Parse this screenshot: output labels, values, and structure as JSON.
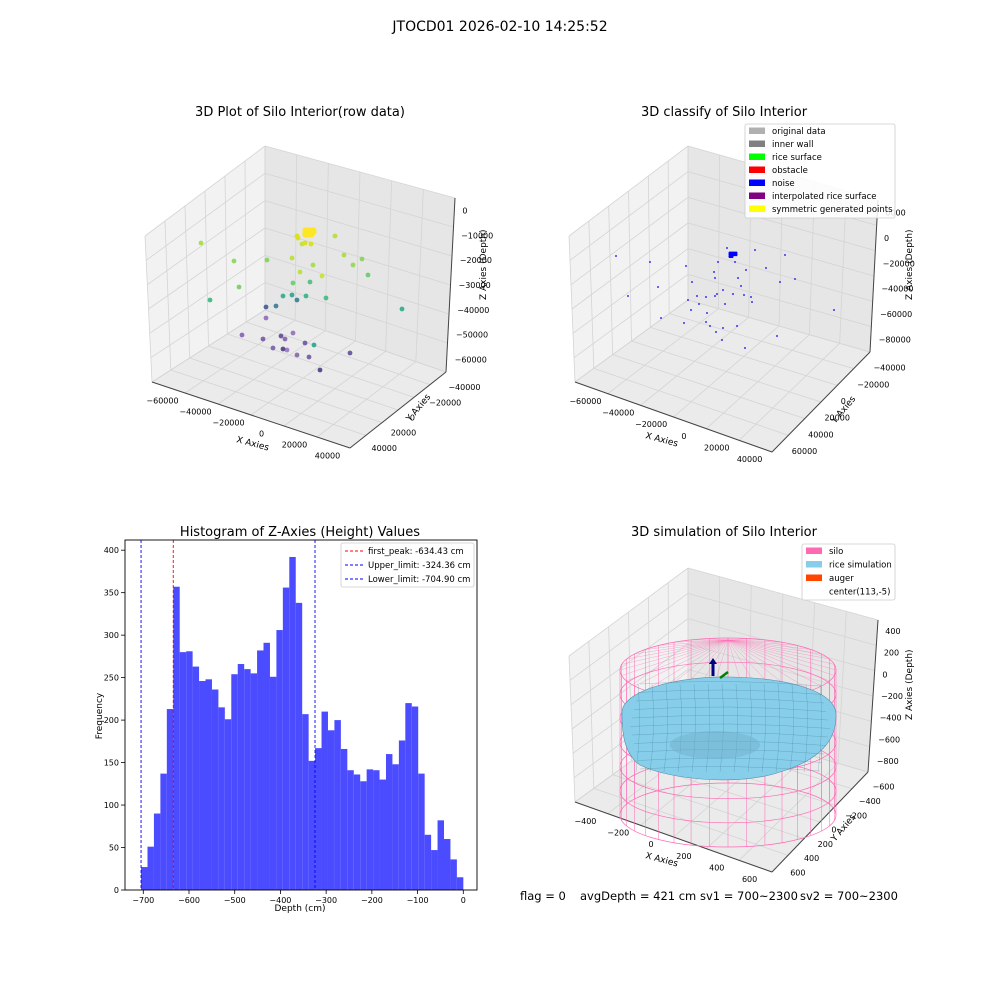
{
  "suptitle": "JTOCD01 2026-02-10 14:25:52",
  "footer": {
    "flag": "flag = 0",
    "avg_depth": "avgDepth = 421 cm",
    "sv1": "sv1 = 700~2300",
    "sv2": "sv2 = 700~2300"
  },
  "colors": {
    "histogram_bar": "#4b4bff",
    "first_peak": "#ff0000",
    "limits": "#0000ff",
    "silo": "#ff69b4",
    "rice_simulation": "#87ceeb",
    "auger": "#ff4500",
    "noise": "#0000ff"
  },
  "chart_data": [
    {
      "type": "scatter",
      "title": "3D Plot of Silo Interior(row data)",
      "xlabel": "X Axies",
      "ylabel": "Y Axies",
      "zlabel": "Z Axies (Depth)",
      "x_ticks": [
        "−60000",
        "−40000",
        "−20000",
        "0",
        "20000",
        "40000"
      ],
      "y_ticks": [
        "40000",
        "20000",
        "0",
        "−20000",
        "−40000"
      ],
      "z_ticks": [
        "0",
        "−10000",
        "−20000",
        "−30000",
        "−40000",
        "−50000",
        "−60000"
      ],
      "colormap": "viridis by depth"
    },
    {
      "type": "scatter",
      "title": "3D classify of Silo Interior",
      "xlabel": "X Axies",
      "ylabel": "Y Axies",
      "zlabel": "Z Axies (Depth)",
      "x_ticks": [
        "−60000",
        "−40000",
        "−20000",
        "0",
        "20000",
        "40000"
      ],
      "y_ticks": [
        "60000",
        "40000",
        "20000",
        "0",
        "−20000",
        "−40000"
      ],
      "z_ticks": [
        "0000",
        "0",
        "−20000",
        "−40000",
        "−60000",
        "−80000"
      ],
      "legend": [
        {
          "label": "original data",
          "color": "#b0b0b0"
        },
        {
          "label": "inner wall",
          "color": "#808080"
        },
        {
          "label": "rice surface",
          "color": "#00ff00"
        },
        {
          "label": "obstacle",
          "color": "#ff0000"
        },
        {
          "label": "noise",
          "color": "#0000ff"
        },
        {
          "label": "interpolated rice surface",
          "color": "#800080"
        },
        {
          "label": "symmetric generated points",
          "color": "#ffff00"
        }
      ],
      "legend_position": "top-right"
    },
    {
      "type": "bar",
      "title": "Histogram of Z-Axies (Height) Values",
      "xlabel": "Depth (cm)",
      "ylabel": "Frequency",
      "xlim": [
        -740,
        30
      ],
      "ylim": [
        0,
        412
      ],
      "x_ticks": [
        -700,
        -600,
        -500,
        -400,
        -300,
        -200,
        -100,
        0
      ],
      "x_tick_labels": [
        "−700",
        "−600",
        "−500",
        "−400",
        "−300",
        "−200",
        "−100",
        "0"
      ],
      "y_ticks": [
        0,
        50,
        100,
        150,
        200,
        250,
        300,
        350,
        400
      ],
      "bin_start": -704.9,
      "bin_width": 14.1,
      "values": [
        27,
        51,
        90,
        137,
        213,
        357,
        280,
        281,
        263,
        246,
        248,
        236,
        215,
        201,
        254,
        266,
        260,
        255,
        282,
        291,
        251,
        306,
        356,
        392,
        338,
        207,
        152,
        167,
        210,
        188,
        200,
        166,
        141,
        136,
        128,
        142,
        141,
        130,
        160,
        148,
        176,
        220,
        216,
        137,
        65,
        47,
        82,
        60,
        36,
        15
      ],
      "vlines": [
        {
          "name": "first_peak: -634.43 cm",
          "x": -634.43,
          "color": "#ff0000"
        },
        {
          "name": "Upper_limit: -324.36 cm",
          "x": -324.36,
          "color": "#0000ff"
        },
        {
          "name": "Lower_limit: -704.90 cm",
          "x": -704.9,
          "color": "#0000ff"
        }
      ],
      "legend_position": "top-right"
    },
    {
      "type": "scatter",
      "title": "3D simulation of Silo Interior",
      "xlabel": "X Axies",
      "ylabel": "Y Axies",
      "zlabel": "Z Axies (Depth)",
      "x_ticks": [
        "−400",
        "−200",
        "0",
        "200",
        "400",
        "600"
      ],
      "y_ticks": [
        "600",
        "400",
        "200",
        "0",
        "−200",
        "−400",
        "−600"
      ],
      "z_ticks": [
        "400",
        "200",
        "0",
        "−200",
        "−400",
        "−600",
        "−800"
      ],
      "legend": [
        {
          "label": "silo",
          "color": "#ff69b4"
        },
        {
          "label": "rice simulation",
          "color": "#87ceeb"
        },
        {
          "label": "auger",
          "color": "#ff4500"
        },
        {
          "label": "center(113,-5)",
          "color": ""
        }
      ],
      "legend_position": "top-right"
    }
  ]
}
